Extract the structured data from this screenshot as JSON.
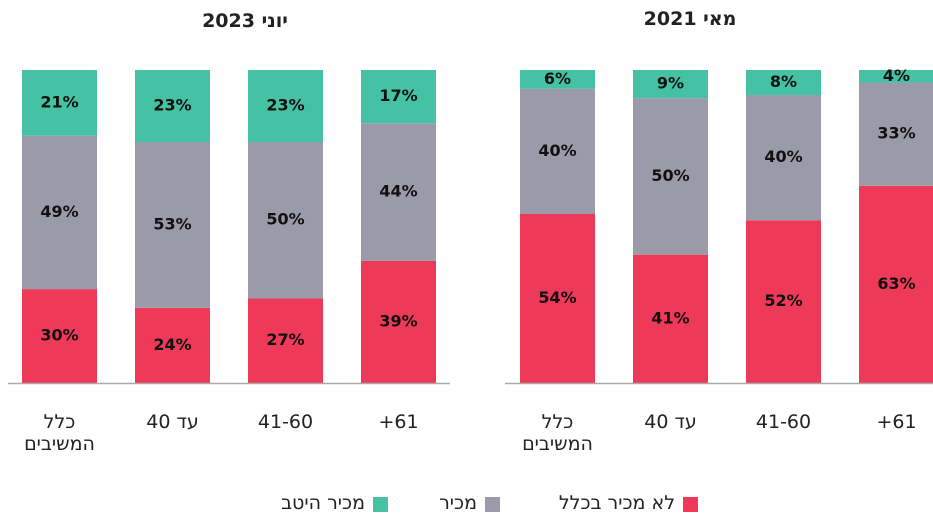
{
  "chart_data": [
    {
      "type": "stacked_bar",
      "title": "יוני 2023",
      "categories": [
        "כלל המשיבים",
        "עד 40",
        "41-60",
        "61+"
      ],
      "ylim": [
        0,
        100
      ],
      "series": [
        {
          "name": "לא מכיר בכלל",
          "color": "#ee3a58",
          "values": [
            30,
            24,
            27,
            39
          ],
          "value_labels": [
            "30%",
            "24%",
            "27%",
            "39%"
          ]
        },
        {
          "name": "מכיר",
          "color": "#9b9aa8",
          "values": [
            49,
            53,
            50,
            44
          ],
          "value_labels": [
            "49%",
            "53%",
            "50%",
            "44%"
          ]
        },
        {
          "name": "מכיר היטב",
          "color": "#45c1a4",
          "values": [
            21,
            23,
            23,
            17
          ],
          "value_labels": [
            "21%",
            "23%",
            "23%",
            "17%"
          ]
        }
      ]
    },
    {
      "type": "stacked_bar",
      "title": "מאי 2021",
      "categories": [
        "כלל המשיבים",
        "עד 40",
        "41-60",
        "61+"
      ],
      "ylim": [
        0,
        100
      ],
      "series": [
        {
          "name": "לא מכיר בכלל",
          "color": "#ee3a58",
          "values": [
            54,
            41,
            52,
            63
          ],
          "value_labels": [
            "54%",
            "41%",
            "52%",
            "63%"
          ]
        },
        {
          "name": "מכיר",
          "color": "#9b9aa8",
          "values": [
            40,
            50,
            40,
            33
          ],
          "value_labels": [
            "40%",
            "50%",
            "40%",
            "33%"
          ]
        },
        {
          "name": "מכיר היטב",
          "color": "#45c1a4",
          "values": [
            6,
            9,
            8,
            4
          ],
          "value_labels": [
            "6%",
            "9%",
            "8%",
            "4%"
          ]
        }
      ]
    }
  ]
}
